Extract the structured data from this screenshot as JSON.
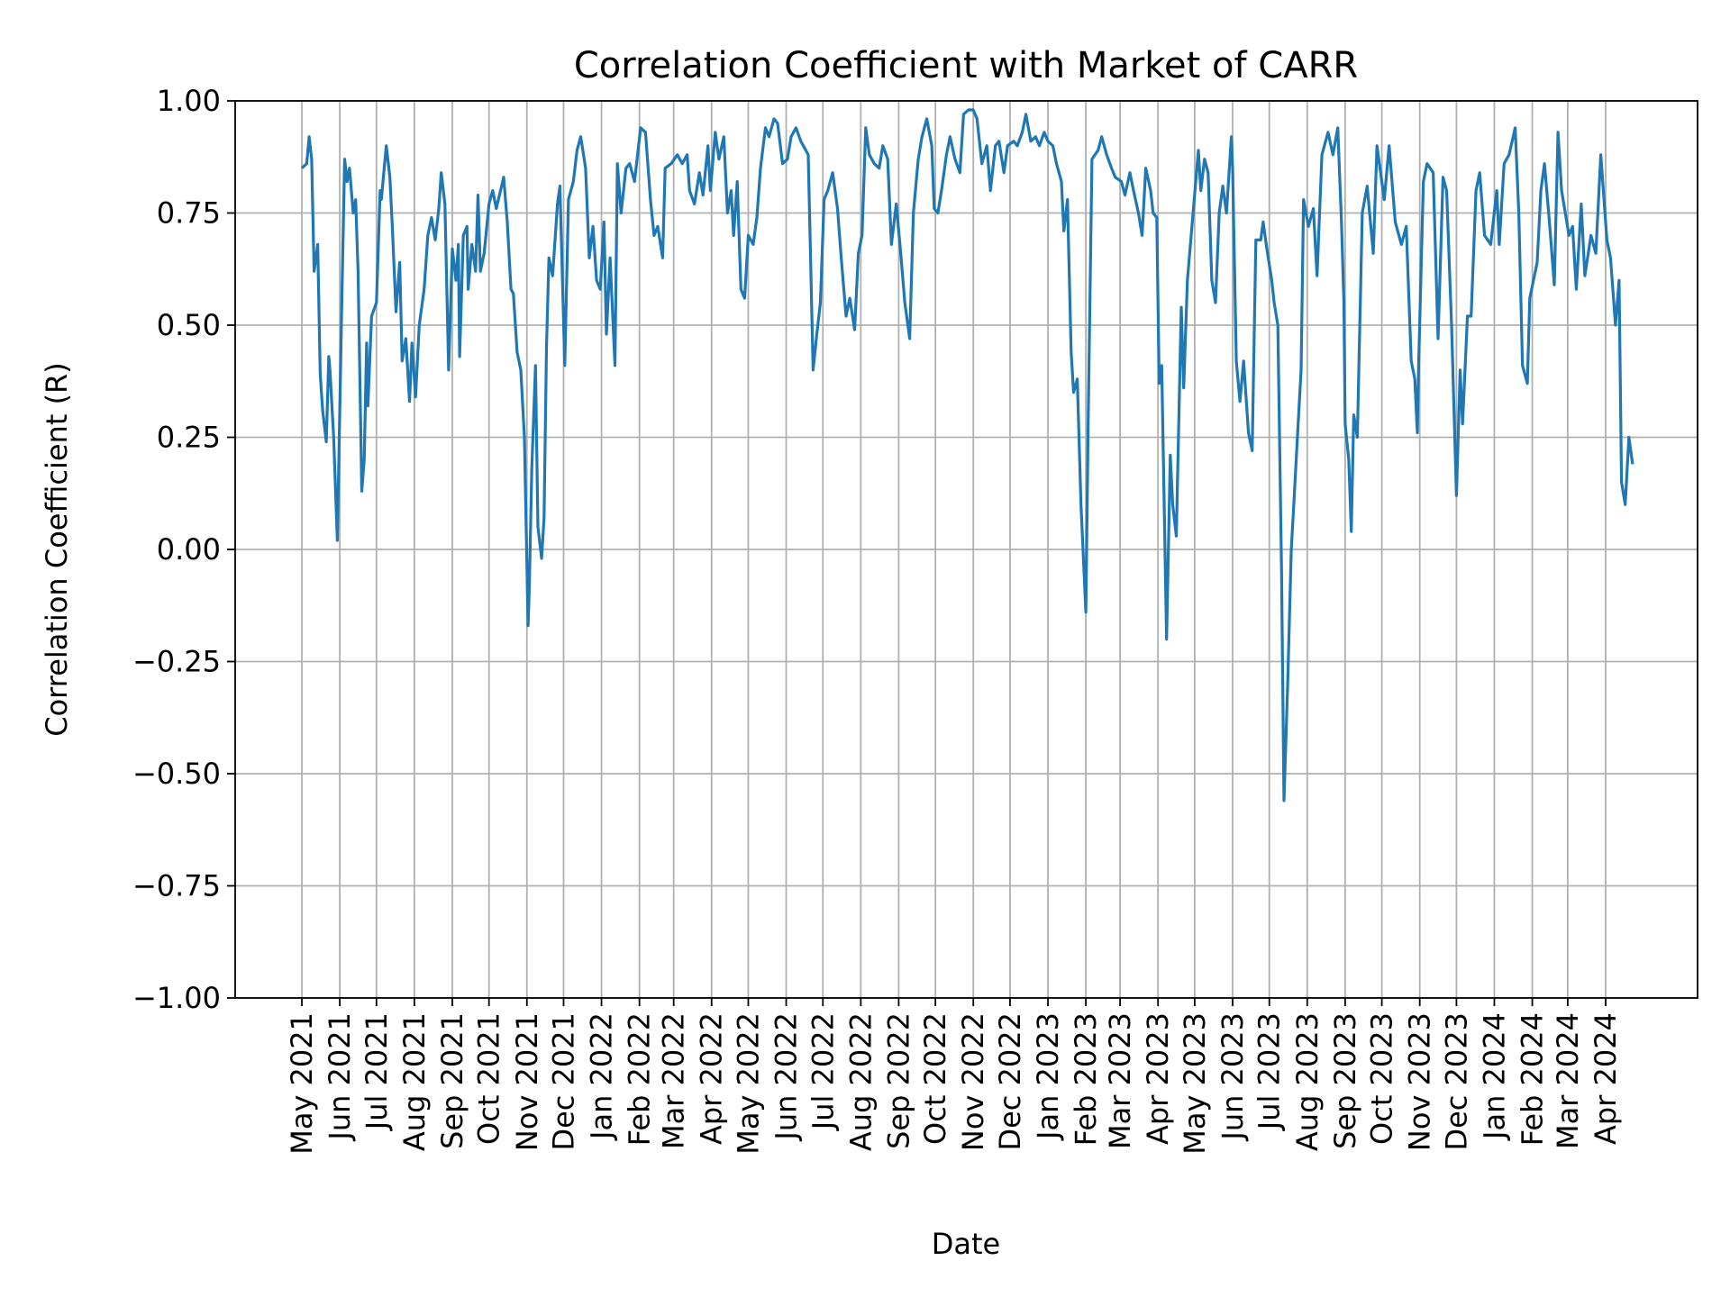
{
  "chart_data": {
    "type": "line",
    "title": "Correlation Coefficient with Market of CARR",
    "xlabel": "Date",
    "ylabel": "Correlation Coefficient (R)",
    "ylim": [
      -1.0,
      1.0
    ],
    "yticks": [
      "−1.00",
      "−0.75",
      "−0.50",
      "−0.25",
      "0.00",
      "0.25",
      "0.50",
      "0.75",
      "1.00"
    ],
    "ytick_values": [
      -1,
      -0.75,
      -0.5,
      -0.25,
      0,
      0.25,
      0.5,
      0.75,
      1
    ],
    "xticks": [
      {
        "date": "2021-05-01",
        "label": "May 2021"
      },
      {
        "date": "2021-06-01",
        "label": "Jun 2021"
      },
      {
        "date": "2021-07-01",
        "label": "Jul 2021"
      },
      {
        "date": "2021-08-01",
        "label": "Aug 2021"
      },
      {
        "date": "2021-09-01",
        "label": "Sep 2021"
      },
      {
        "date": "2021-10-01",
        "label": "Oct 2021"
      },
      {
        "date": "2021-11-01",
        "label": "Nov 2021"
      },
      {
        "date": "2021-12-01",
        "label": "Dec 2021"
      },
      {
        "date": "2022-01-01",
        "label": "Jan 2022"
      },
      {
        "date": "2022-02-01",
        "label": "Feb 2022"
      },
      {
        "date": "2022-03-01",
        "label": "Mar 2022"
      },
      {
        "date": "2022-04-01",
        "label": "Apr 2022"
      },
      {
        "date": "2022-05-01",
        "label": "May 2022"
      },
      {
        "date": "2022-06-01",
        "label": "Jun 2022"
      },
      {
        "date": "2022-07-01",
        "label": "Jul 2022"
      },
      {
        "date": "2022-08-01",
        "label": "Aug 2022"
      },
      {
        "date": "2022-09-01",
        "label": "Sep 2022"
      },
      {
        "date": "2022-10-01",
        "label": "Oct 2022"
      },
      {
        "date": "2022-11-01",
        "label": "Nov 2022"
      },
      {
        "date": "2022-12-01",
        "label": "Dec 2022"
      },
      {
        "date": "2023-01-01",
        "label": "Jan 2023"
      },
      {
        "date": "2023-02-01",
        "label": "Feb 2023"
      },
      {
        "date": "2023-03-01",
        "label": "Mar 2023"
      },
      {
        "date": "2023-04-01",
        "label": "Apr 2023"
      },
      {
        "date": "2023-05-01",
        "label": "May 2023"
      },
      {
        "date": "2023-06-01",
        "label": "Jun 2023"
      },
      {
        "date": "2023-07-01",
        "label": "Jul 2023"
      },
      {
        "date": "2023-08-01",
        "label": "Aug 2023"
      },
      {
        "date": "2023-09-01",
        "label": "Sep 2023"
      },
      {
        "date": "2023-10-01",
        "label": "Oct 2023"
      },
      {
        "date": "2023-11-01",
        "label": "Nov 2023"
      },
      {
        "date": "2023-12-01",
        "label": "Dec 2023"
      },
      {
        "date": "2024-01-01",
        "label": "Jan 2024"
      },
      {
        "date": "2024-02-01",
        "label": "Feb 2024"
      },
      {
        "date": "2024-03-01",
        "label": "Mar 2024"
      },
      {
        "date": "2024-04-01",
        "label": "Apr 2024"
      }
    ],
    "grid": true,
    "line_color": "#1f77b4",
    "series": [
      {
        "x": [
          "2021-05-01",
          "2021-05-05",
          "2021-05-07",
          "2021-05-09",
          "2021-05-11",
          "2021-05-14",
          "2021-05-16",
          "2021-05-18",
          "2021-05-21",
          "2021-05-23",
          "2021-05-24",
          "2021-05-27",
          "2021-05-30",
          "2021-06-03",
          "2021-06-05",
          "2021-06-07",
          "2021-06-09",
          "2021-06-12",
          "2021-06-14",
          "2021-06-16",
          "2021-06-19",
          "2021-06-21",
          "2021-06-23",
          "2021-06-24",
          "2021-06-27",
          "2021-07-01",
          "2021-07-04",
          "2021-07-05",
          "2021-07-09",
          "2021-07-12",
          "2021-07-14",
          "2021-07-17",
          "2021-07-20",
          "2021-07-22",
          "2021-07-25",
          "2021-07-28",
          "2021-07-30",
          "2021-08-02",
          "2021-08-05",
          "2021-08-09",
          "2021-08-12",
          "2021-08-15",
          "2021-08-18",
          "2021-08-21",
          "2021-08-23",
          "2021-08-26",
          "2021-08-29",
          "2021-09-01",
          "2021-09-04",
          "2021-09-06",
          "2021-09-07",
          "2021-09-10",
          "2021-09-13",
          "2021-09-14",
          "2021-09-17",
          "2021-09-20",
          "2021-09-22",
          "2021-09-24",
          "2021-09-27",
          "2021-10-01",
          "2021-10-04",
          "2021-10-07",
          "2021-10-13",
          "2021-10-16",
          "2021-10-19",
          "2021-10-21",
          "2021-10-24",
          "2021-10-27",
          "2021-10-30",
          "2021-11-02",
          "2021-11-03",
          "2021-11-05",
          "2021-11-08",
          "2021-11-10",
          "2021-11-13",
          "2021-11-15",
          "2021-11-17",
          "2021-11-19",
          "2021-11-22",
          "2021-11-26",
          "2021-11-28",
          "2021-12-02",
          "2021-12-05",
          "2021-12-09",
          "2021-12-12",
          "2021-12-15",
          "2021-12-19",
          "2021-12-22",
          "2021-12-25",
          "2021-12-28",
          "2021-12-31",
          "2022-01-03",
          "2022-01-05",
          "2022-01-08",
          "2022-01-12",
          "2022-01-14",
          "2022-01-17",
          "2022-01-21",
          "2022-01-24",
          "2022-01-28",
          "2022-02-02",
          "2022-02-06",
          "2022-02-10",
          "2022-02-13",
          "2022-02-16",
          "2022-02-20",
          "2022-02-22",
          "2022-02-27",
          "2022-03-04",
          "2022-03-08",
          "2022-03-12",
          "2022-03-14",
          "2022-03-18",
          "2022-03-22",
          "2022-03-25",
          "2022-03-29",
          "2022-03-31",
          "2022-04-04",
          "2022-04-07",
          "2022-04-11",
          "2022-04-14",
          "2022-04-17",
          "2022-04-19",
          "2022-04-22",
          "2022-04-25",
          "2022-04-28",
          "2022-05-01",
          "2022-05-05",
          "2022-05-08",
          "2022-05-11",
          "2022-05-15",
          "2022-05-18",
          "2022-05-22",
          "2022-05-25",
          "2022-05-29",
          "2022-06-02",
          "2022-06-05",
          "2022-06-09",
          "2022-06-13",
          "2022-06-19",
          "2022-06-23",
          "2022-06-26",
          "2022-06-29",
          "2022-07-02",
          "2022-07-05",
          "2022-07-09",
          "2022-07-13",
          "2022-07-16",
          "2022-07-20",
          "2022-07-23",
          "2022-07-27",
          "2022-07-30",
          "2022-08-02",
          "2022-08-05",
          "2022-08-08",
          "2022-08-12",
          "2022-08-16",
          "2022-08-19",
          "2022-08-23",
          "2022-08-26",
          "2022-08-30",
          "2022-09-03",
          "2022-09-06",
          "2022-09-10",
          "2022-09-13",
          "2022-09-17",
          "2022-09-20",
          "2022-09-24",
          "2022-09-28",
          "2022-09-30",
          "2022-10-03",
          "2022-10-06",
          "2022-10-10",
          "2022-10-13",
          "2022-10-17",
          "2022-10-21",
          "2022-10-24",
          "2022-10-28",
          "2022-11-01",
          "2022-11-04",
          "2022-11-08",
          "2022-11-12",
          "2022-11-15",
          "2022-11-19",
          "2022-11-22",
          "2022-11-26",
          "2022-11-29",
          "2022-12-04",
          "2022-12-07",
          "2022-12-11",
          "2022-12-14",
          "2022-12-18",
          "2022-12-22",
          "2022-12-25",
          "2022-12-29",
          "2023-01-01",
          "2023-01-05",
          "2023-01-08",
          "2023-01-12",
          "2023-01-14",
          "2023-01-17",
          "2023-01-20",
          "2023-01-22",
          "2023-01-25",
          "2023-01-28",
          "2023-02-01",
          "2023-02-03",
          "2023-02-06",
          "2023-02-11",
          "2023-02-14",
          "2023-02-18",
          "2023-02-22",
          "2023-02-25",
          "2023-03-02",
          "2023-03-05",
          "2023-03-09",
          "2023-03-12",
          "2023-03-16",
          "2023-03-19",
          "2023-03-22",
          "2023-03-26",
          "2023-03-28",
          "2023-03-31",
          "2023-04-02",
          "2023-04-04",
          "2023-04-08",
          "2023-04-11",
          "2023-04-13",
          "2023-04-16",
          "2023-04-20",
          "2023-04-22",
          "2023-04-25",
          "2023-05-04",
          "2023-05-06",
          "2023-05-09",
          "2023-05-12",
          "2023-05-15",
          "2023-05-18",
          "2023-05-21",
          "2023-05-24",
          "2023-05-27",
          "2023-05-31",
          "2023-06-01",
          "2023-06-04",
          "2023-06-07",
          "2023-06-10",
          "2023-06-14",
          "2023-06-17",
          "2023-06-20",
          "2023-06-24",
          "2023-06-26",
          "2023-06-29",
          "2023-07-03",
          "2023-07-05",
          "2023-07-08",
          "2023-07-11",
          "2023-07-13",
          "2023-07-16",
          "2023-07-19",
          "2023-07-21",
          "2023-07-24",
          "2023-07-27",
          "2023-07-29",
          "2023-08-02",
          "2023-08-06",
          "2023-08-09",
          "2023-08-13",
          "2023-08-18",
          "2023-08-22",
          "2023-08-26",
          "2023-08-29",
          "2023-08-31",
          "2023-09-01",
          "2023-09-04",
          "2023-09-06",
          "2023-09-08",
          "2023-09-11",
          "2023-09-15",
          "2023-09-19",
          "2023-09-24",
          "2023-09-27",
          "2023-10-03",
          "2023-10-07",
          "2023-10-12",
          "2023-10-17",
          "2023-10-21",
          "2023-10-25",
          "2023-10-28",
          "2023-10-30",
          "2023-10-31",
          "2023-11-04",
          "2023-11-07",
          "2023-11-12",
          "2023-11-16",
          "2023-11-20",
          "2023-11-23",
          "2023-11-27",
          "2023-12-01",
          "2023-12-04",
          "2023-12-06",
          "2023-12-10",
          "2023-12-13",
          "2023-12-17",
          "2023-12-20",
          "2023-12-24",
          "2023-12-29",
          "2024-01-03",
          "2024-01-05",
          "2024-01-09",
          "2024-01-13",
          "2024-01-18",
          "2024-01-21",
          "2024-01-24",
          "2024-01-28",
          "2024-01-30",
          "2024-02-05",
          "2024-02-08",
          "2024-02-11",
          "2024-02-15",
          "2024-02-19",
          "2024-02-22",
          "2024-02-25",
          "2024-03-02",
          "2024-03-05",
          "2024-03-08",
          "2024-03-12",
          "2024-03-15",
          "2024-03-20",
          "2024-03-24",
          "2024-03-28",
          "2024-04-02",
          "2024-04-05",
          "2024-04-09",
          "2024-04-12",
          "2024-04-14",
          "2024-04-17",
          "2024-04-20",
          "2024-04-23"
        ],
        "y": [
          0.85,
          0.86,
          0.92,
          0.87,
          0.62,
          0.68,
          0.39,
          0.31,
          0.24,
          0.43,
          0.4,
          0.25,
          0.02,
          0.6,
          0.87,
          0.82,
          0.85,
          0.75,
          0.78,
          0.62,
          0.13,
          0.2,
          0.46,
          0.32,
          0.52,
          0.55,
          0.8,
          0.78,
          0.9,
          0.83,
          0.72,
          0.53,
          0.64,
          0.42,
          0.47,
          0.33,
          0.46,
          0.34,
          0.5,
          0.58,
          0.7,
          0.74,
          0.69,
          0.76,
          0.84,
          0.77,
          0.4,
          0.67,
          0.6,
          0.68,
          0.43,
          0.7,
          0.72,
          0.58,
          0.68,
          0.62,
          0.79,
          0.62,
          0.66,
          0.77,
          0.8,
          0.76,
          0.83,
          0.73,
          0.58,
          0.57,
          0.44,
          0.4,
          0.25,
          -0.17,
          -0.08,
          0.18,
          0.41,
          0.05,
          -0.02,
          0.07,
          0.45,
          0.65,
          0.61,
          0.77,
          0.81,
          0.41,
          0.78,
          0.82,
          0.89,
          0.92,
          0.85,
          0.65,
          0.72,
          0.6,
          0.58,
          0.73,
          0.48,
          0.65,
          0.41,
          0.86,
          0.75,
          0.85,
          0.86,
          0.82,
          0.94,
          0.93,
          0.78,
          0.7,
          0.72,
          0.65,
          0.85,
          0.86,
          0.88,
          0.86,
          0.88,
          0.8,
          0.77,
          0.84,
          0.79,
          0.9,
          0.8,
          0.93,
          0.87,
          0.92,
          0.75,
          0.8,
          0.7,
          0.82,
          0.58,
          0.56,
          0.7,
          0.68,
          0.74,
          0.85,
          0.94,
          0.92,
          0.96,
          0.95,
          0.86,
          0.87,
          0.92,
          0.94,
          0.91,
          0.88,
          0.4,
          0.48,
          0.55,
          0.78,
          0.8,
          0.84,
          0.76,
          0.65,
          0.52,
          0.56,
          0.49,
          0.66,
          0.7,
          0.94,
          0.88,
          0.86,
          0.85,
          0.9,
          0.87,
          0.68,
          0.77,
          0.65,
          0.55,
          0.47,
          0.75,
          0.87,
          0.92,
          0.96,
          0.9,
          0.76,
          0.75,
          0.8,
          0.88,
          0.92,
          0.87,
          0.84,
          0.97,
          0.98,
          0.98,
          0.96,
          0.86,
          0.9,
          0.8,
          0.9,
          0.91,
          0.84,
          0.9,
          0.91,
          0.9,
          0.93,
          0.97,
          0.91,
          0.92,
          0.9,
          0.93,
          0.91,
          0.9,
          0.86,
          0.82,
          0.71,
          0.78,
          0.44,
          0.35,
          0.38,
          0.1,
          -0.14,
          0.3,
          0.87,
          0.89,
          0.92,
          0.88,
          0.85,
          0.83,
          0.82,
          0.79,
          0.84,
          0.8,
          0.75,
          0.7,
          0.85,
          0.8,
          0.75,
          0.74,
          0.37,
          0.41,
          -0.2,
          0.21,
          0.1,
          0.03,
          0.54,
          0.36,
          0.6,
          0.89,
          0.8,
          0.87,
          0.84,
          0.6,
          0.55,
          0.75,
          0.81,
          0.75,
          0.92,
          0.85,
          0.42,
          0.33,
          0.42,
          0.26,
          0.22,
          0.69,
          0.69,
          0.73,
          0.67,
          0.6,
          0.55,
          0.5,
          -0.05,
          -0.56,
          -0.3,
          0.0,
          0.1,
          0.25,
          0.4,
          0.78,
          0.72,
          0.76,
          0.61,
          0.88,
          0.93,
          0.88,
          0.94,
          0.73,
          0.55,
          0.28,
          0.2,
          0.04,
          0.3,
          0.25,
          0.75,
          0.81,
          0.66,
          0.9,
          0.78,
          0.9,
          0.73,
          0.68,
          0.72,
          0.42,
          0.38,
          0.26,
          0.4,
          0.82,
          0.86,
          0.84,
          0.47,
          0.83,
          0.8,
          0.5,
          0.12,
          0.4,
          0.28,
          0.52,
          0.52,
          0.8,
          0.84,
          0.7,
          0.68,
          0.8,
          0.68,
          0.86,
          0.88,
          0.94,
          0.75,
          0.41,
          0.37,
          0.56,
          0.64,
          0.8,
          0.86,
          0.73,
          0.59,
          0.93,
          0.8,
          0.7,
          0.72,
          0.58,
          0.77,
          0.61,
          0.7,
          0.66,
          0.88,
          0.69,
          0.65,
          0.5,
          0.6,
          0.15,
          0.1,
          0.25,
          0.19
        ]
      }
    ]
  }
}
